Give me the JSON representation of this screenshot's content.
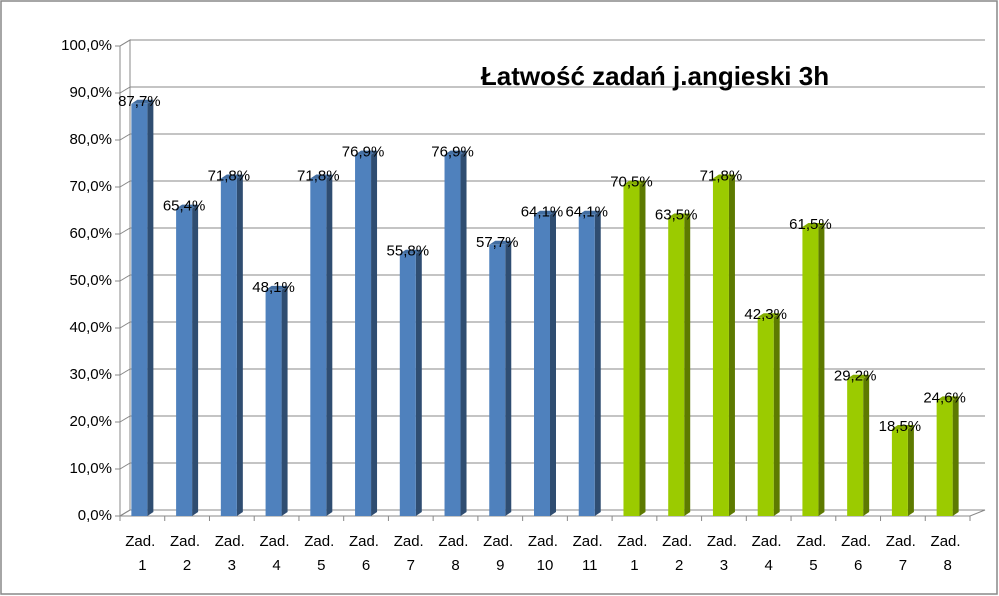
{
  "chart_data": {
    "type": "bar3d",
    "title": "Łatwość zadań j.angieski 3h",
    "categories": [
      "Zad. 1",
      "Zad. 2",
      "Zad. 3",
      "Zad. 4",
      "Zad. 5",
      "Zad. 6",
      "Zad. 7",
      "Zad. 8",
      "Zad. 9",
      "Zad. 10",
      "Zad. 11",
      "Zad. 1",
      "Zad. 2",
      "Zad. 3",
      "Zad. 4",
      "Zad. 5",
      "Zad. 6",
      "Zad. 7",
      "Zad. 8"
    ],
    "values": [
      87.7,
      65.4,
      71.8,
      48.1,
      71.8,
      76.9,
      55.8,
      76.9,
      57.7,
      64.1,
      64.1,
      70.5,
      63.5,
      71.8,
      42.3,
      61.5,
      29.2,
      18.5,
      24.6
    ],
    "value_labels": [
      "87,7%",
      "65,4%",
      "71,8%",
      "48,1%",
      "71,8%",
      "76,9%",
      "55,8%",
      "76,9%",
      "57,7%",
      "64,1%",
      "64,1%",
      "70,5%",
      "63,5%",
      "71,8%",
      "42,3%",
      "61,5%",
      "29,2%",
      "18,5%",
      "24,6%"
    ],
    "colors": [
      "#4f81bd",
      "#4f81bd",
      "#4f81bd",
      "#4f81bd",
      "#4f81bd",
      "#4f81bd",
      "#4f81bd",
      "#4f81bd",
      "#4f81bd",
      "#4f81bd",
      "#4f81bd",
      "#9bcb00",
      "#9bcb00",
      "#9bcb00",
      "#9bcb00",
      "#9bcb00",
      "#9bcb00",
      "#9bcb00",
      "#9bcb00"
    ],
    "ylim": [
      0,
      100
    ],
    "yticks": [
      {
        "value": 0,
        "label": "0,0%"
      },
      {
        "value": 10,
        "label": "10,0%"
      },
      {
        "value": 20,
        "label": "20,0%"
      },
      {
        "value": 30,
        "label": "30,0%"
      },
      {
        "value": 40,
        "label": "40,0%"
      },
      {
        "value": 50,
        "label": "50,0%"
      },
      {
        "value": 60,
        "label": "60,0%"
      },
      {
        "value": 70,
        "label": "70,0%"
      },
      {
        "value": 80,
        "label": "80,0%"
      },
      {
        "value": 90,
        "label": "90,0%"
      },
      {
        "value": 100,
        "label": "100,0%"
      }
    ],
    "grid": true
  }
}
